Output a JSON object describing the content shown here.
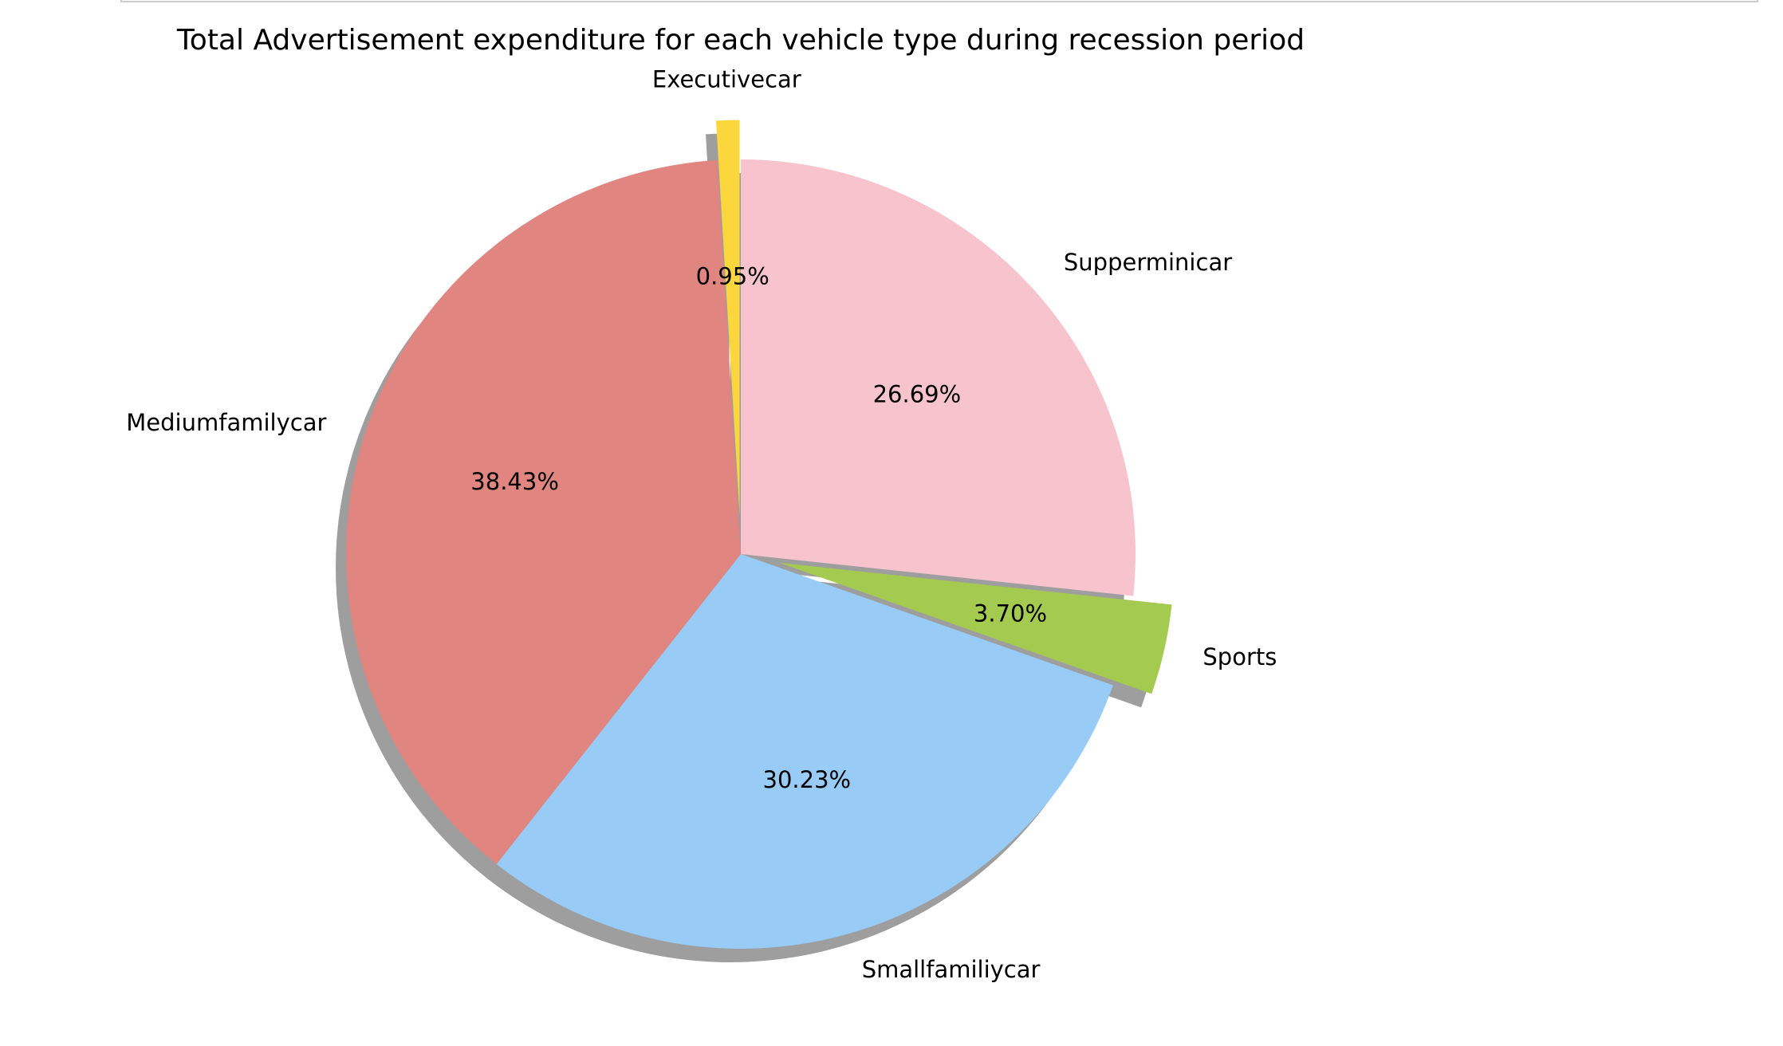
{
  "chart_data": {
    "type": "pie",
    "title": "Total Advertisement expenditure for each vehicle type during recession period",
    "categories": [
      "Supperminicar",
      "Sports",
      "Smallfamiliycar",
      "Mediumfamilycar",
      "Executivecar"
    ],
    "values": [
      26.69,
      3.7,
      30.23,
      38.43,
      0.95
    ],
    "percent_labels": [
      "26.69%",
      "3.70%",
      "30.23%",
      "38.43%",
      "0.95%"
    ],
    "colors": [
      "#f7c3cd",
      "#a4ca50",
      "#98cbf5",
      "#e08580",
      "#fbd63c"
    ],
    "exploded": [
      false,
      true,
      false,
      false,
      true
    ],
    "shadow": true,
    "start_angle_deg": 90,
    "direction": "clockwise",
    "legend": false
  }
}
